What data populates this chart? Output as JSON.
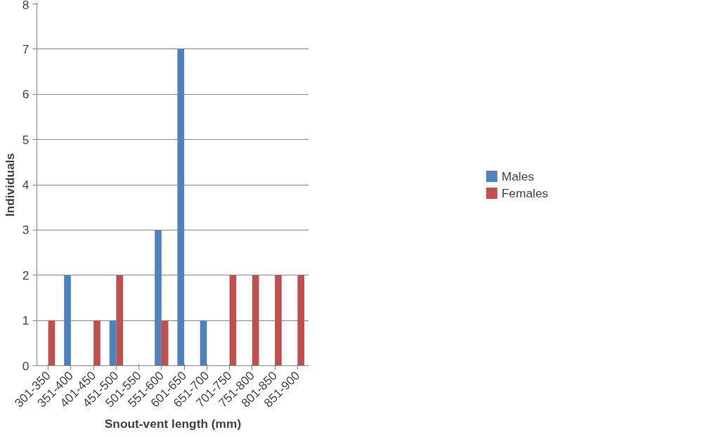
{
  "chart_data": {
    "type": "bar",
    "xlabel": "Snout-vent length (mm)",
    "ylabel": "Individuals",
    "categories": [
      "301-350",
      "351-400",
      "401-450",
      "451-500",
      "501-550",
      "551-600",
      "601-650",
      "651-700",
      "701-750",
      "751-800",
      "801-850",
      "851-900"
    ],
    "series": [
      {
        "name": "Males",
        "color": "#4f81bd",
        "values": [
          0,
          2,
          0,
          1,
          0,
          3,
          7,
          1,
          0,
          0,
          0,
          0
        ]
      },
      {
        "name": "Females",
        "color": "#c0504d",
        "values": [
          1,
          0,
          1,
          2,
          0,
          1,
          0,
          0,
          2,
          2,
          2,
          2
        ]
      }
    ],
    "ylim": [
      0,
      8
    ],
    "yticks": [
      0,
      1,
      2,
      3,
      4,
      5,
      6,
      7,
      8
    ],
    "grid": "y",
    "legend": "right"
  }
}
